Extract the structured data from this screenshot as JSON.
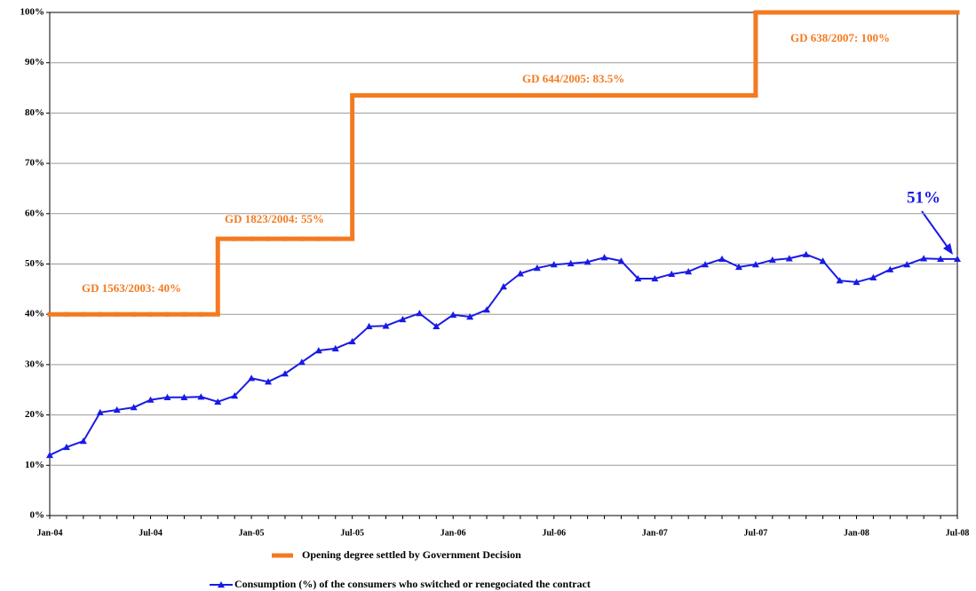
{
  "chart_data": {
    "type": "line",
    "categories": [
      "Jan-04",
      null,
      null,
      null,
      null,
      null,
      "Jul-04",
      null,
      null,
      null,
      null,
      null,
      "Jan-05",
      null,
      null,
      null,
      null,
      null,
      "Jul-05",
      null,
      null,
      null,
      null,
      null,
      "Jan-06",
      null,
      null,
      null,
      null,
      null,
      "Jul-06",
      null,
      null,
      null,
      null,
      null,
      "Jan-07",
      null,
      null,
      null,
      null,
      null,
      "Jul-07",
      null,
      null,
      null,
      null,
      null,
      "Jan-08",
      null,
      null,
      null,
      null,
      null,
      "Jul-08"
    ],
    "series": [
      {
        "name": "Opening degree settled by Government Decision",
        "color": "#f47a20",
        "step": true,
        "values": [
          40,
          40,
          40,
          40,
          40,
          40,
          40,
          40,
          40,
          40,
          55,
          55,
          55,
          55,
          55,
          55,
          55,
          55,
          83.5,
          83.5,
          83.5,
          83.5,
          83.5,
          83.5,
          83.5,
          83.5,
          83.5,
          83.5,
          83.5,
          83.5,
          83.5,
          83.5,
          83.5,
          83.5,
          83.5,
          83.5,
          83.5,
          83.5,
          83.5,
          83.5,
          83.5,
          83.5,
          100,
          100,
          100,
          100,
          100,
          100,
          100,
          100,
          100,
          100,
          100,
          100,
          100
        ]
      },
      {
        "name": "Consumption (%) of the consumers who switched or renegociated the contract",
        "color": "#1a1ae6",
        "marker": "triangle",
        "values": [
          12.0,
          13.6,
          14.8,
          20.5,
          21.0,
          21.5,
          23.0,
          23.5,
          23.5,
          23.6,
          22.6,
          23.8,
          27.3,
          26.6,
          28.2,
          30.5,
          32.8,
          33.2,
          34.6,
          37.6,
          37.7,
          39.0,
          40.2,
          37.6,
          39.9,
          39.5,
          40.9,
          45.5,
          48.1,
          49.2,
          49.9,
          50.1,
          50.4,
          51.3,
          50.6,
          47.1,
          47.1,
          48.0,
          48.5,
          49.9,
          51.0,
          49.4,
          49.9,
          50.8,
          51.1,
          51.9,
          50.6,
          46.7,
          46.4,
          47.3,
          48.9,
          49.9,
          51.1,
          51.0,
          51.0
        ]
      }
    ],
    "ylim": [
      0,
      100
    ],
    "yticks": [
      {
        "value": 0,
        "label": "0%"
      },
      {
        "value": 10,
        "label": "10%"
      },
      {
        "value": 20,
        "label": "20%"
      },
      {
        "value": 30,
        "label": "30%"
      },
      {
        "value": 40,
        "label": "40%"
      },
      {
        "value": 50,
        "label": "50%"
      },
      {
        "value": 60,
        "label": "60%"
      },
      {
        "value": 70,
        "label": "70%"
      },
      {
        "value": 80,
        "label": "80%"
      },
      {
        "value": 90,
        "label": "90%"
      },
      {
        "value": 100,
        "label": "100%"
      }
    ],
    "grid": true,
    "annotations": [
      "GD 1563/2003:  40%",
      "GD 1823/2004:  55%",
      "GD 644/2005:  83.5%",
      "GD 638/2007: 100%",
      "51%"
    ]
  }
}
